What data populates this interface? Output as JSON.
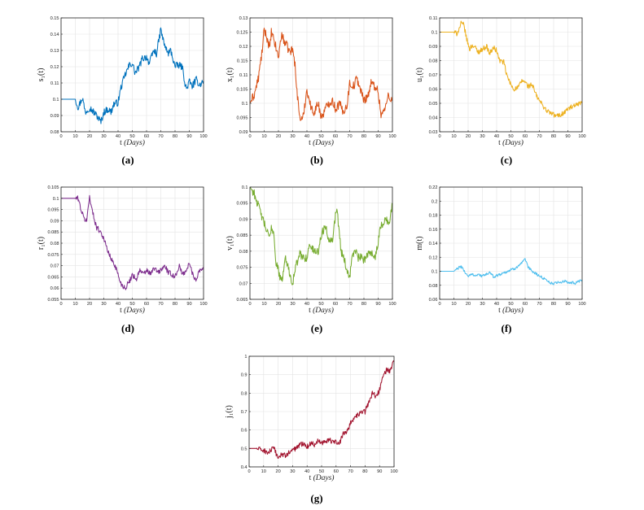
{
  "chart_data": [
    {
      "type": "line",
      "panel": "(a)",
      "ylabel": "s₁(t)",
      "xlabel": "t",
      "xunit": "(Days)",
      "xlim": [
        0,
        100
      ],
      "ylim": [
        0.08,
        0.15
      ],
      "xticks": [
        "0",
        "10",
        "20",
        "30",
        "40",
        "50",
        "60",
        "70",
        "80",
        "90",
        "100"
      ],
      "yticks": [
        "0.08",
        "0.09",
        "0.1",
        "0.11",
        "0.12",
        "0.13",
        "0.14",
        "0.15"
      ],
      "color": "#0072BD",
      "noise": 0.0022,
      "series": [
        {
          "name": "s1",
          "x": [
            0,
            10,
            12,
            15,
            17,
            20,
            23,
            25,
            28,
            30,
            33,
            35,
            37,
            40,
            42,
            45,
            48,
            50,
            52,
            55,
            57,
            60,
            62,
            65,
            67,
            70,
            72,
            75,
            77,
            80,
            82,
            85,
            87,
            88,
            90,
            92,
            95,
            97,
            100
          ],
          "y": [
            0.1,
            0.1,
            0.095,
            0.101,
            0.092,
            0.095,
            0.092,
            0.09,
            0.086,
            0.092,
            0.094,
            0.092,
            0.097,
            0.098,
            0.107,
            0.115,
            0.121,
            0.122,
            0.116,
            0.12,
            0.125,
            0.126,
            0.122,
            0.13,
            0.128,
            0.143,
            0.135,
            0.128,
            0.13,
            0.12,
            0.121,
            0.12,
            0.11,
            0.106,
            0.111,
            0.108,
            0.112,
            0.109,
            0.111
          ]
        }
      ]
    },
    {
      "type": "line",
      "panel": "(b)",
      "ylabel": "x₁(t)",
      "xlabel": "t",
      "xunit": "(Days)",
      "xlim": [
        0,
        100
      ],
      "ylim": [
        0.09,
        0.13
      ],
      "xticks": [
        "0",
        "10",
        "20",
        "30",
        "40",
        "50",
        "60",
        "70",
        "80",
        "90",
        "100"
      ],
      "yticks": [
        "0.09",
        "0.095",
        "0.1",
        "0.105",
        "0.11",
        "0.115",
        "0.12",
        "0.125",
        "0.13"
      ],
      "color": "#D95319",
      "noise": 0.0016,
      "series": [
        {
          "name": "x1",
          "x": [
            0,
            3,
            6,
            9,
            10,
            12,
            14,
            15,
            18,
            20,
            22,
            25,
            28,
            30,
            32,
            33,
            35,
            37,
            40,
            43,
            45,
            48,
            50,
            53,
            55,
            58,
            60,
            63,
            65,
            68,
            70,
            73,
            75,
            78,
            80,
            83,
            85,
            88,
            90,
            92,
            95,
            97,
            100
          ],
          "y": [
            0.1,
            0.103,
            0.109,
            0.12,
            0.126,
            0.123,
            0.119,
            0.125,
            0.12,
            0.116,
            0.124,
            0.121,
            0.118,
            0.119,
            0.112,
            0.104,
            0.095,
            0.094,
            0.105,
            0.098,
            0.097,
            0.1,
            0.095,
            0.098,
            0.1,
            0.101,
            0.098,
            0.1,
            0.097,
            0.099,
            0.107,
            0.106,
            0.109,
            0.104,
            0.101,
            0.103,
            0.107,
            0.106,
            0.104,
            0.096,
            0.098,
            0.103,
            0.101
          ]
        }
      ]
    },
    {
      "type": "line",
      "panel": "(c)",
      "ylabel": "u₁(t)",
      "xlabel": "t",
      "xunit": "(Days)",
      "xlim": [
        0,
        100
      ],
      "ylim": [
        0.03,
        0.11
      ],
      "xticks": [
        "0",
        "10",
        "20",
        "30",
        "40",
        "50",
        "60",
        "70",
        "80",
        "90",
        "100"
      ],
      "yticks": [
        "0.03",
        "0.04",
        "0.05",
        "0.06",
        "0.07",
        "0.08",
        "0.09",
        "0.1",
        "0.11"
      ],
      "color": "#EDB120",
      "noise": 0.0018,
      "series": [
        {
          "name": "u1",
          "x": [
            0,
            10,
            12,
            14,
            15,
            17,
            19,
            21,
            23,
            25,
            27,
            30,
            33,
            35,
            38,
            40,
            42,
            45,
            47,
            50,
            52,
            55,
            58,
            60,
            62,
            65,
            68,
            70,
            72,
            75,
            78,
            80,
            82,
            85,
            88,
            90,
            92,
            95,
            97,
            100
          ],
          "y": [
            0.1,
            0.1,
            0.099,
            0.103,
            0.106,
            0.105,
            0.095,
            0.088,
            0.091,
            0.089,
            0.086,
            0.088,
            0.09,
            0.085,
            0.089,
            0.087,
            0.08,
            0.079,
            0.07,
            0.063,
            0.06,
            0.061,
            0.066,
            0.065,
            0.062,
            0.063,
            0.055,
            0.052,
            0.049,
            0.045,
            0.043,
            0.042,
            0.041,
            0.042,
            0.044,
            0.046,
            0.047,
            0.048,
            0.049,
            0.05
          ]
        }
      ]
    },
    {
      "type": "line",
      "panel": "(d)",
      "ylabel": "r₁(t)",
      "xlabel": "t",
      "xunit": "(Days)",
      "xlim": [
        0,
        100
      ],
      "ylim": [
        0.055,
        0.105
      ],
      "xticks": [
        "0",
        "10",
        "20",
        "30",
        "40",
        "50",
        "60",
        "70",
        "80",
        "90",
        "100"
      ],
      "yticks": [
        "0.055",
        "0.06",
        "0.065",
        "0.07",
        "0.075",
        "0.08",
        "0.085",
        "0.09",
        "0.095",
        "0.1",
        "0.105"
      ],
      "color": "#7E2F8E",
      "noise": 0.0012,
      "series": [
        {
          "name": "r1",
          "x": [
            0,
            10,
            12,
            14,
            16,
            18,
            20,
            22,
            25,
            28,
            30,
            32,
            35,
            38,
            40,
            42,
            45,
            48,
            50,
            53,
            55,
            58,
            60,
            63,
            65,
            68,
            70,
            73,
            75,
            78,
            80,
            83,
            85,
            88,
            90,
            93,
            95,
            97,
            100
          ],
          "y": [
            0.1,
            0.1,
            0.1,
            0.095,
            0.091,
            0.09,
            0.101,
            0.094,
            0.087,
            0.085,
            0.082,
            0.078,
            0.073,
            0.07,
            0.066,
            0.062,
            0.06,
            0.063,
            0.066,
            0.064,
            0.068,
            0.066,
            0.068,
            0.066,
            0.069,
            0.067,
            0.068,
            0.07,
            0.067,
            0.066,
            0.065,
            0.07,
            0.066,
            0.068,
            0.071,
            0.065,
            0.064,
            0.068,
            0.069
          ]
        }
      ]
    },
    {
      "type": "line",
      "panel": "(e)",
      "ylabel": "v₁(t)",
      "xlabel": "t",
      "xunit": "(Days)",
      "xlim": [
        0,
        100
      ],
      "ylim": [
        0.065,
        0.1
      ],
      "xticks": [
        "0",
        "10",
        "20",
        "30",
        "40",
        "50",
        "60",
        "70",
        "80",
        "90",
        "100"
      ],
      "yticks": [
        "0.065",
        "0.07",
        "0.075",
        "0.08",
        "0.085",
        "0.09",
        "0.095",
        "0.1"
      ],
      "color": "#77AC30",
      "noise": 0.0013,
      "series": [
        {
          "name": "v1",
          "x": [
            0,
            3,
            6,
            9,
            12,
            14,
            15,
            17,
            18,
            20,
            22,
            25,
            28,
            30,
            32,
            35,
            38,
            40,
            42,
            45,
            48,
            50,
            53,
            55,
            58,
            60,
            61,
            62,
            64,
            66,
            68,
            70,
            72,
            74,
            76,
            78,
            80,
            82,
            85,
            88,
            90,
            92,
            95,
            98,
            100
          ],
          "y": [
            0.1,
            0.098,
            0.094,
            0.09,
            0.086,
            0.084,
            0.088,
            0.085,
            0.077,
            0.074,
            0.07,
            0.078,
            0.073,
            0.07,
            0.075,
            0.079,
            0.078,
            0.078,
            0.082,
            0.08,
            0.08,
            0.085,
            0.088,
            0.084,
            0.084,
            0.091,
            0.094,
            0.089,
            0.08,
            0.078,
            0.074,
            0.072,
            0.079,
            0.08,
            0.078,
            0.078,
            0.077,
            0.079,
            0.08,
            0.078,
            0.083,
            0.088,
            0.09,
            0.089,
            0.095
          ]
        }
      ]
    },
    {
      "type": "line",
      "panel": "(f)",
      "ylabel": "m(t)",
      "xlabel": "t",
      "xunit": "(Days)",
      "xlim": [
        0,
        100
      ],
      "ylim": [
        0.06,
        0.22
      ],
      "xticks": [
        "0",
        "10",
        "20",
        "30",
        "40",
        "50",
        "60",
        "70",
        "80",
        "90",
        "100"
      ],
      "yticks": [
        "0.06",
        "0.08",
        "0.1",
        "0.12",
        "0.14",
        "0.16",
        "0.18",
        "0.2",
        "0.22"
      ],
      "color": "#4DBEEE",
      "noise": 0.002,
      "series": [
        {
          "name": "m",
          "x": [
            0,
            10,
            12,
            15,
            18,
            20,
            23,
            25,
            28,
            30,
            33,
            35,
            38,
            40,
            43,
            45,
            48,
            50,
            53,
            55,
            58,
            60,
            62,
            65,
            68,
            70,
            72,
            75,
            78,
            80,
            83,
            85,
            88,
            90,
            93,
            95,
            98,
            100
          ],
          "y": [
            0.1,
            0.1,
            0.103,
            0.107,
            0.098,
            0.093,
            0.096,
            0.094,
            0.095,
            0.093,
            0.096,
            0.098,
            0.092,
            0.094,
            0.096,
            0.098,
            0.1,
            0.102,
            0.104,
            0.108,
            0.112,
            0.117,
            0.106,
            0.1,
            0.096,
            0.093,
            0.091,
            0.088,
            0.083,
            0.082,
            0.085,
            0.084,
            0.086,
            0.083,
            0.084,
            0.083,
            0.085,
            0.088
          ]
        }
      ]
    },
    {
      "type": "line",
      "panel": "(g)",
      "ylabel": "j₁(t)",
      "xlabel": "t",
      "xunit": "(Days)",
      "xlim": [
        0,
        100
      ],
      "ylim": [
        0.4,
        1
      ],
      "xticks": [
        "0",
        "10",
        "20",
        "30",
        "40",
        "50",
        "60",
        "70",
        "80",
        "90",
        "100"
      ],
      "yticks": [
        "0.4",
        "0.5",
        "0.6",
        "0.7",
        "0.8",
        "0.9",
        "1"
      ],
      "color": "#A2142F",
      "noise": 0.014,
      "series": [
        {
          "name": "j1",
          "x": [
            0,
            5,
            10,
            13,
            15,
            17,
            20,
            23,
            25,
            28,
            30,
            32,
            35,
            38,
            40,
            43,
            45,
            48,
            50,
            53,
            55,
            58,
            60,
            62,
            65,
            68,
            70,
            72,
            75,
            78,
            80,
            82,
            85,
            88,
            90,
            92,
            95,
            97,
            100
          ],
          "y": [
            0.5,
            0.5,
            0.49,
            0.475,
            0.49,
            0.5,
            0.45,
            0.47,
            0.46,
            0.48,
            0.49,
            0.5,
            0.52,
            0.53,
            0.51,
            0.53,
            0.52,
            0.55,
            0.53,
            0.54,
            0.55,
            0.53,
            0.54,
            0.52,
            0.58,
            0.6,
            0.64,
            0.66,
            0.68,
            0.7,
            0.7,
            0.74,
            0.8,
            0.78,
            0.82,
            0.88,
            0.93,
            0.92,
            0.97
          ]
        }
      ]
    }
  ],
  "captions": [
    "(a)",
    "(b)",
    "(c)",
    "(d)",
    "(e)",
    "(f)",
    "(g)"
  ]
}
